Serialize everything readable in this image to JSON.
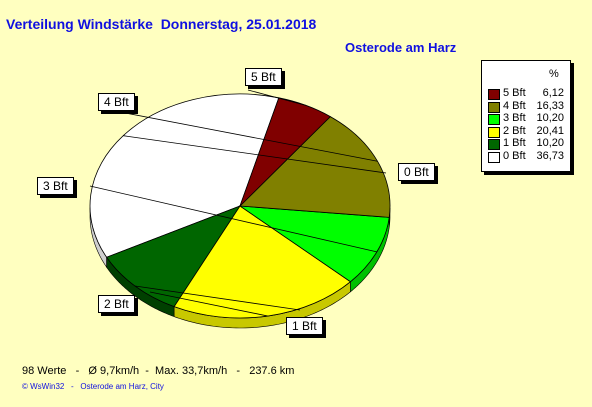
{
  "title": "Verteilung Windstärke  Donnerstag, 25.01.2018",
  "location": "Osterode am Harz",
  "legend_header": "%",
  "stats": "98 Werte   -   Ø 9,7km/h  -  Max. 33,7km/h   -   237.6 km",
  "footer": "© WsWin32   -   Osterode am Harz, City",
  "chart_data": {
    "type": "pie",
    "start_angle_deg": -75,
    "direction": "counterclockwise",
    "slices": [
      {
        "label": "0 Bft",
        "legend_value": "36,73",
        "value": 36.73,
        "color": "#FFFFFF",
        "shadow": "#CFCFCF"
      },
      {
        "label": "1 Bft",
        "legend_value": "10,20",
        "value": 10.2,
        "color": "#006600",
        "shadow": "#004000"
      },
      {
        "label": "2 Bft",
        "legend_value": "20,41",
        "value": 20.41,
        "color": "#FFFF00",
        "shadow": "#C8C800"
      },
      {
        "label": "3 Bft",
        "legend_value": "10,20",
        "value": 10.2,
        "color": "#00FF00",
        "shadow": "#00C000"
      },
      {
        "label": "4 Bft",
        "legend_value": "16,33",
        "value": 16.33,
        "color": "#808000",
        "shadow": "#5A5A00"
      },
      {
        "label": "5 Bft",
        "legend_value": "6,12",
        "value": 6.12,
        "color": "#800000",
        "shadow": "#5A0000"
      }
    ],
    "legend_order": [
      "5 Bft",
      "4 Bft",
      "3 Bft",
      "2 Bft",
      "1 Bft",
      "0 Bft"
    ],
    "legend_placement": "top-right"
  }
}
